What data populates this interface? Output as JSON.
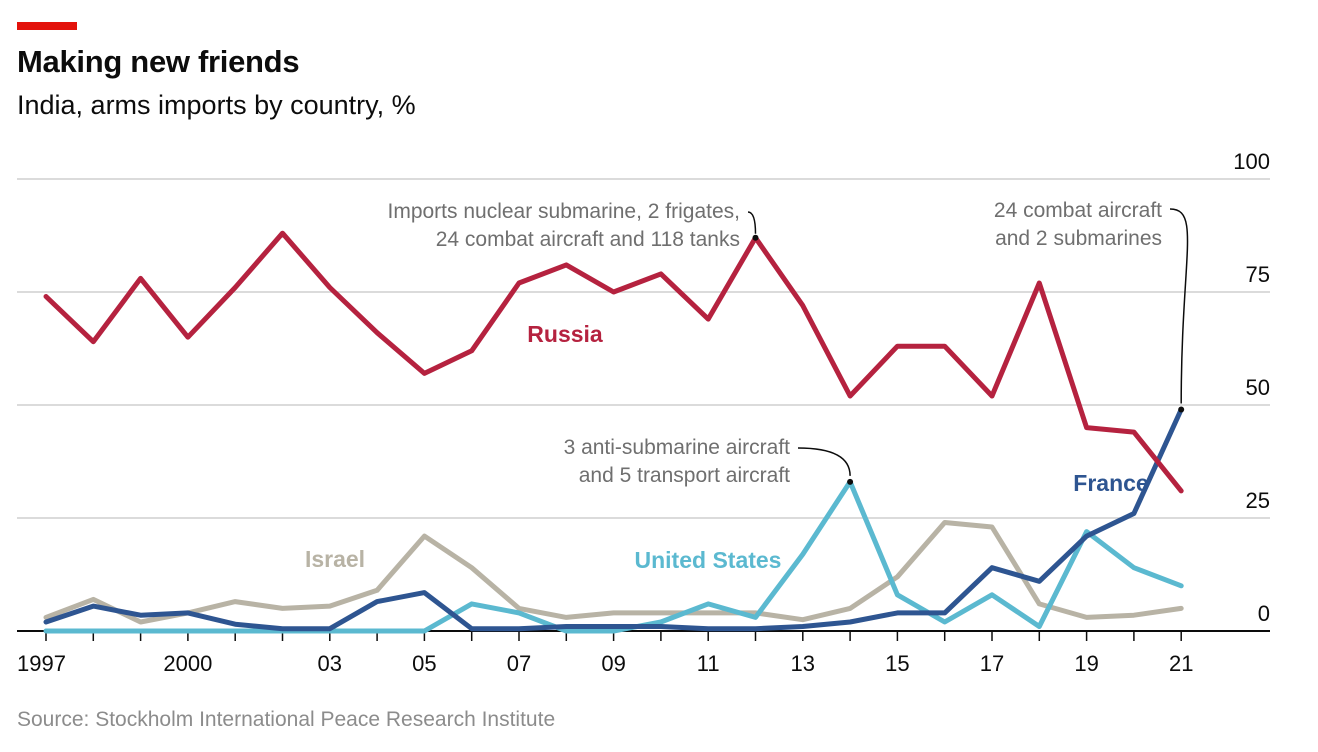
{
  "header": {
    "title": "Making new friends",
    "subtitle": "India, arms imports by country, %"
  },
  "footer": {
    "source": "Source: Stockholm International Peace Research Institute"
  },
  "colors": {
    "accent": "#e3120b",
    "Russia": "#b5223f",
    "France": "#2e5591",
    "United States": "#5bb9d0",
    "Israel": "#b8b3a5",
    "gridline": "#cfcfcf"
  },
  "chart_data": {
    "type": "line",
    "title": "Making new friends",
    "subtitle": "India, arms imports by country, %",
    "x": [
      1997,
      1998,
      1999,
      2000,
      2001,
      2002,
      2003,
      2004,
      2005,
      2006,
      2007,
      2008,
      2009,
      2010,
      2011,
      2012,
      2013,
      2014,
      2015,
      2016,
      2017,
      2018,
      2019,
      2020,
      2021
    ],
    "x_tick_labels": [
      "1997",
      "2000",
      "03",
      "05",
      "07",
      "09",
      "11",
      "13",
      "15",
      "17",
      "19",
      "21"
    ],
    "x_tick_values": [
      1997,
      2000,
      2003,
      2005,
      2007,
      2009,
      2011,
      2013,
      2015,
      2017,
      2019,
      2021
    ],
    "xlim": [
      1997,
      2022.5
    ],
    "ylim": [
      0,
      100
    ],
    "y_ticks": [
      0,
      25,
      50,
      75,
      100
    ],
    "y_axis_side": "right",
    "grid": true,
    "series": [
      {
        "name": "Russia",
        "values": [
          74,
          64,
          78,
          65,
          76,
          88,
          76,
          66,
          57,
          62,
          77,
          81,
          75,
          79,
          69,
          87,
          72,
          52,
          63,
          63,
          52,
          77,
          45,
          44,
          31
        ]
      },
      {
        "name": "France",
        "values": [
          2,
          5.5,
          3.5,
          4,
          1.5,
          0.5,
          0.5,
          6.5,
          8.5,
          0.5,
          0.5,
          1,
          1,
          1,
          0.5,
          0.5,
          1,
          2,
          4,
          4,
          14,
          11,
          21,
          26,
          49
        ]
      },
      {
        "name": "United States",
        "values": [
          0,
          0,
          0,
          0,
          0,
          0,
          0,
          0,
          0,
          6,
          4,
          0,
          0,
          2,
          6,
          3,
          17,
          33,
          8,
          2,
          8,
          1,
          22,
          14,
          10
        ]
      },
      {
        "name": "Israel",
        "values": [
          3,
          7,
          2,
          4,
          6.5,
          5,
          5.5,
          9,
          21,
          14,
          5,
          3,
          4,
          4,
          4,
          4,
          2.5,
          5,
          12,
          24,
          23,
          6,
          3,
          3.5,
          5
        ]
      }
    ],
    "series_labels": [
      {
        "series": "Russia",
        "text": "Russia"
      },
      {
        "series": "France",
        "text": "France"
      },
      {
        "series": "United States",
        "text": "United States"
      },
      {
        "series": "Israel",
        "text": "Israel"
      }
    ],
    "annotations": [
      {
        "year": 2012,
        "series": "Russia",
        "lines": [
          "Imports nuclear submarine, 2 frigates,",
          "24 combat aircraft and 118 tanks"
        ]
      },
      {
        "year": 2021,
        "series": "France",
        "lines": [
          "24 combat aircraft",
          "and 2 submarines"
        ]
      },
      {
        "year": 2014,
        "series": "United States",
        "lines": [
          "3 anti-submarine aircraft",
          "and 5 transport aircraft"
        ]
      }
    ]
  }
}
